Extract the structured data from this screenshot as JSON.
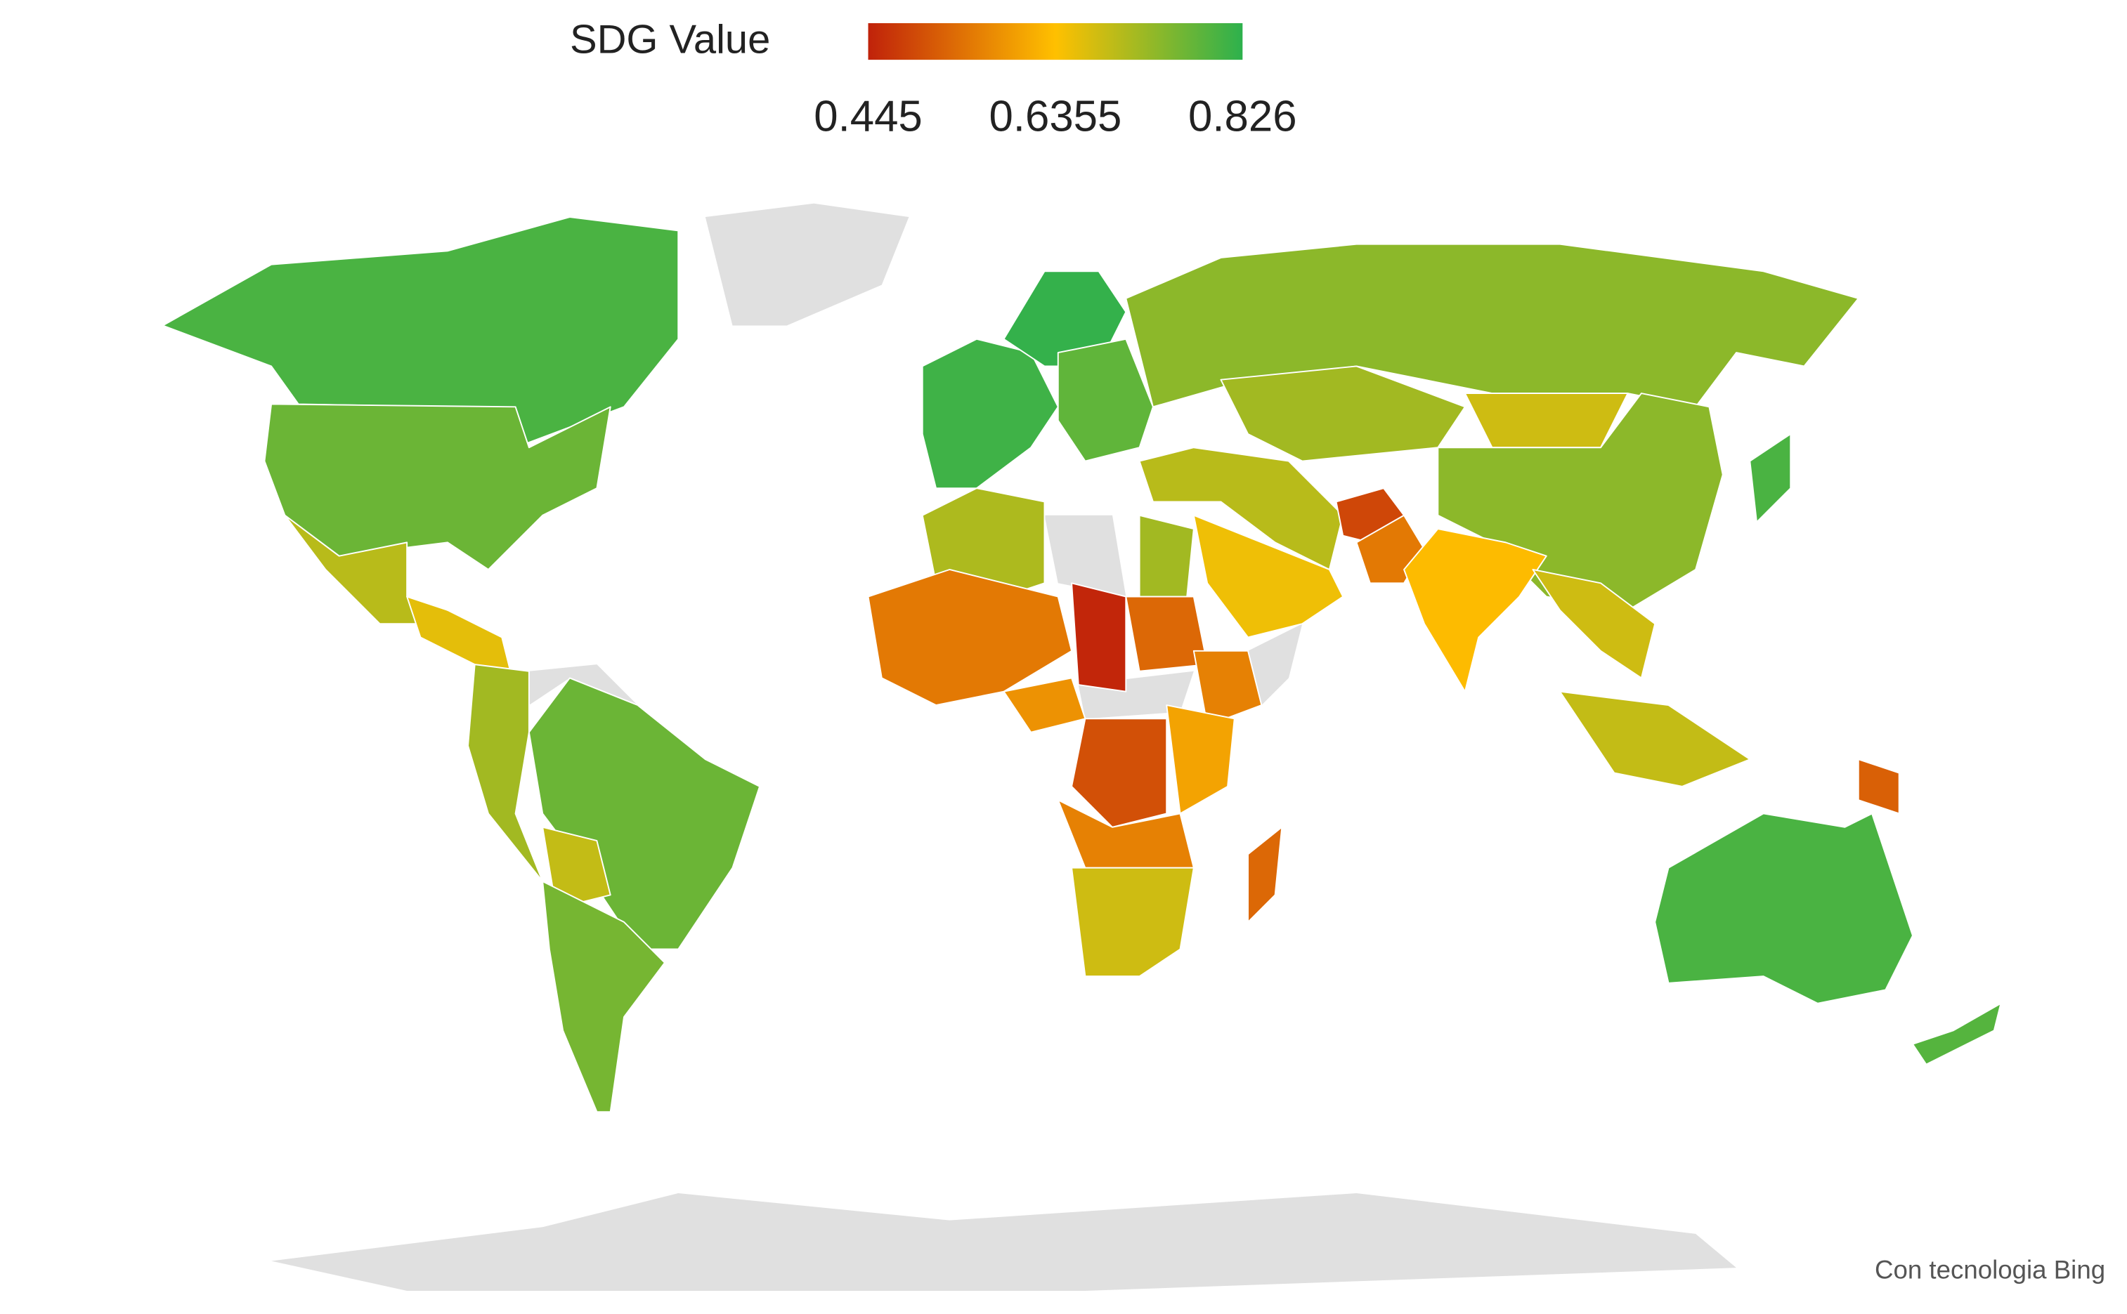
{
  "chart_data": {
    "type": "choropleth",
    "legend_title": "SDG Value",
    "colorbar": {
      "ticks": [
        0.445,
        0.6355,
        0.826
      ],
      "colors": [
        "#c0220a",
        "#ffc000",
        "#2db14d"
      ]
    },
    "values": [
      0.8,
      0.77,
      0.7,
      0.66,
      0.72,
      0.77,
      0.69,
      0.76,
      0.81,
      0.82,
      0.78,
      0.74,
      0.72,
      0.68,
      0.74,
      0.8,
      0.7,
      0.65,
      0.49,
      0.55,
      0.63,
      0.68,
      0.69,
      0.52,
      0.8,
      0.79,
      0.71,
      0.72,
      0.55,
      0.45,
      0.53,
      0.56,
      0.5,
      0.6,
      0.56,
      0.68,
      0.53,
      0.58
    ],
    "no_data_color": "#e0e0e0",
    "footer": "Con tecnologia Bing"
  }
}
